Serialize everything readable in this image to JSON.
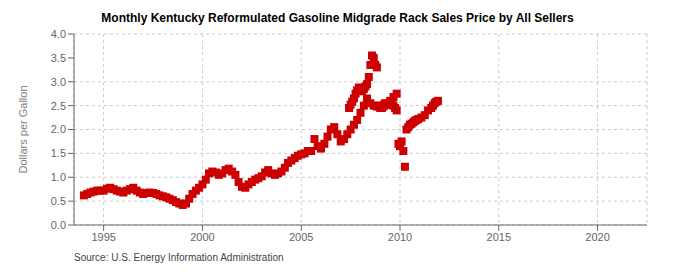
{
  "chart_data": {
    "type": "scatter",
    "title": "Monthly Kentucky Reformulated Gasoline Midgrade Rack Sales Price by All Sellers",
    "y_label": "Dollars per Gallon",
    "annotations": [
      "Source: U.S. Energy Information Administration"
    ],
    "color": "#cc0000",
    "marker": "square",
    "grid": true,
    "xlim": [
      1993.5,
      2022.5
    ],
    "ylim": [
      0.0,
      4.0
    ],
    "xticks": [
      1995,
      2000,
      2005,
      2010,
      2015,
      2020
    ],
    "yticks": [
      {
        "value": 0.0,
        "label": "0.0"
      },
      0.5,
      {
        "value": 1.0,
        "label": "1.0"
      },
      1.5,
      {
        "value": 2.0,
        "label": "2.0"
      },
      2.5,
      {
        "value": 3.0,
        "label": "3.0"
      },
      3.5,
      {
        "value": 4.0,
        "label": "4.0"
      }
    ],
    "x": [
      1994.0,
      1994.17,
      1994.33,
      1994.5,
      1994.67,
      1994.83,
      1995.0,
      1995.17,
      1995.33,
      1995.5,
      1995.67,
      1995.83,
      1996.0,
      1996.17,
      1996.33,
      1996.5,
      1996.67,
      1996.83,
      1997.0,
      1997.17,
      1997.33,
      1997.5,
      1997.67,
      1997.83,
      1998.0,
      1998.17,
      1998.33,
      1998.5,
      1998.67,
      1998.83,
      1999.0,
      1999.17,
      1999.33,
      1999.5,
      1999.67,
      1999.83,
      2000.0,
      2000.17,
      2000.33,
      2000.5,
      2000.67,
      2000.83,
      2001.0,
      2001.17,
      2001.33,
      2001.5,
      2001.67,
      2001.83,
      2002.0,
      2002.17,
      2002.33,
      2002.5,
      2002.67,
      2002.83,
      2003.0,
      2003.17,
      2003.33,
      2003.5,
      2003.67,
      2003.83,
      2004.0,
      2004.17,
      2004.33,
      2004.5,
      2004.67,
      2004.83,
      2005.0,
      2005.17,
      2005.33,
      2005.5,
      2005.67,
      2005.83,
      2006.0,
      2006.17,
      2006.33,
      2006.5,
      2006.67,
      2006.83,
      2007.0,
      2007.17,
      2007.33,
      2007.5,
      2007.67,
      2007.83,
      2008.0,
      2008.17,
      2008.33,
      2008.5,
      2008.67,
      2008.83,
      2009.0,
      2009.17,
      2009.33,
      2009.5,
      2009.67,
      2009.83,
      2007.42,
      2007.5,
      2007.58,
      2007.67,
      2007.75,
      2007.83,
      2007.92,
      2008.08,
      2008.17,
      2008.25,
      2008.33,
      2008.42,
      2008.5,
      2008.58,
      2008.67,
      2008.75,
      2008.83,
      2008.92,
      2009.0,
      2009.08,
      2009.17,
      2009.25,
      2009.33,
      2009.42,
      2009.5,
      2009.58,
      2009.67,
      2009.75,
      2009.83,
      2009.92,
      2010.0,
      2010.08,
      2010.17,
      2010.25,
      2010.33,
      2010.42,
      2010.5,
      2010.58,
      2010.67,
      2010.75,
      2010.83,
      2010.92,
      2011.08,
      2011.25,
      2011.42,
      2011.58,
      2011.67,
      2011.75,
      2011.83,
      2011.92
    ],
    "values": [
      0.62,
      0.65,
      0.68,
      0.7,
      0.72,
      0.72,
      0.72,
      0.76,
      0.78,
      0.75,
      0.72,
      0.7,
      0.68,
      0.72,
      0.75,
      0.78,
      0.72,
      0.68,
      0.65,
      0.67,
      0.68,
      0.67,
      0.65,
      0.62,
      0.6,
      0.58,
      0.55,
      0.52,
      0.48,
      0.45,
      0.42,
      0.45,
      0.55,
      0.65,
      0.72,
      0.78,
      0.85,
      0.95,
      1.08,
      1.12,
      1.1,
      1.05,
      1.08,
      1.15,
      1.18,
      1.12,
      1.05,
      0.9,
      0.8,
      0.78,
      0.85,
      0.9,
      0.95,
      0.98,
      1.02,
      1.1,
      1.15,
      1.08,
      1.05,
      1.08,
      1.12,
      1.2,
      1.3,
      1.35,
      1.4,
      1.45,
      1.48,
      1.5,
      1.55,
      1.55,
      1.8,
      1.65,
      1.6,
      1.7,
      1.85,
      2.0,
      2.05,
      1.9,
      1.75,
      1.8,
      1.9,
      2.0,
      2.1,
      2.2,
      2.35,
      2.5,
      2.65,
      2.55,
      2.5,
      2.48,
      2.45,
      2.48,
      2.52,
      2.6,
      2.68,
      2.75,
      2.45,
      2.52,
      2.58,
      2.65,
      2.75,
      2.82,
      2.88,
      2.8,
      2.85,
      2.9,
      2.95,
      3.1,
      3.35,
      3.55,
      3.5,
      3.35,
      3.3,
      2.5,
      2.48,
      2.45,
      2.52,
      2.55,
      2.55,
      2.52,
      2.55,
      2.52,
      2.5,
      2.45,
      2.4,
      1.7,
      1.65,
      1.75,
      1.55,
      1.22,
      2.0,
      2.05,
      2.1,
      2.12,
      2.15,
      2.18,
      2.2,
      2.22,
      2.25,
      2.3,
      2.4,
      2.45,
      2.5,
      2.55,
      2.58,
      2.6
    ]
  }
}
